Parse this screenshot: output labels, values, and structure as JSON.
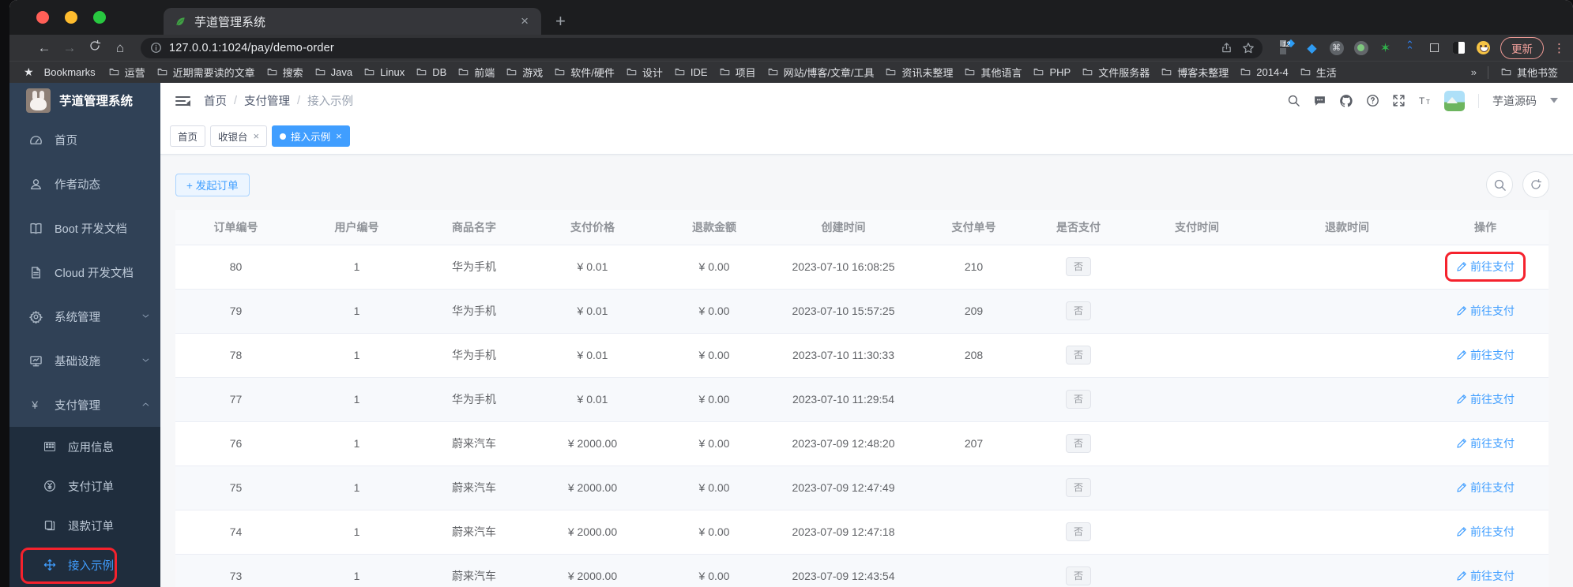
{
  "colors": {
    "accent": "#409EFF",
    "sidebar": "#304156",
    "submenu": "#1F2D3D",
    "annotation_red": "#F5222D",
    "light_red": "#FF5F57",
    "light_yellow": "#FEBC2E",
    "light_green": "#28C840"
  },
  "browser": {
    "tab_title": "芋道管理系统",
    "tab_favicon": "leaf-icon",
    "new_tab_label": "+",
    "close_label": "×",
    "url": "127.0.0.1:1024/pay/demo-order",
    "update_label": "更新",
    "extension_badge": "12",
    "kebab_label": "⋮",
    "bookmarks_label": "Bookmarks",
    "more_label": "»",
    "other_bookmarks_label": "其他书签",
    "bookmarks": [
      "运营",
      "近期需要读的文章",
      "搜索",
      "Java",
      "Linux",
      "DB",
      "前端",
      "游戏",
      "软件/硬件",
      "设计",
      "IDE",
      "项目",
      "网站/博客/文章/工具",
      "资讯未整理",
      "其他语言",
      "PHP",
      "文件服务器",
      "博客未整理",
      "2014-4",
      "生活"
    ],
    "extensions": [
      "squares-extension-icon",
      "kite-extension-icon",
      "command-extension-icon",
      "recorder-extension-icon",
      "star-extension-icon",
      "layers-extension-icon",
      "puzzle-extension-icon",
      "dark-reader-extension-icon",
      "emoji-extension-icon"
    ]
  },
  "app": {
    "sidebar": {
      "title": "芋道管理系统",
      "items": [
        {
          "icon": "dashboard-icon",
          "label": "首页"
        },
        {
          "icon": "user-icon",
          "label": "作者动态"
        },
        {
          "icon": "book-icon",
          "label": "Boot 开发文档"
        },
        {
          "icon": "document-icon",
          "label": "Cloud 开发文档"
        },
        {
          "icon": "gear-icon",
          "label": "系统管理",
          "expand": "down"
        },
        {
          "icon": "monitor-icon",
          "label": "基础设施",
          "expand": "down"
        },
        {
          "icon": "yen-icon",
          "label": "支付管理",
          "expand": "up"
        }
      ],
      "submenu": [
        {
          "icon": "grid-icon",
          "label": "应用信息"
        },
        {
          "icon": "yen-circle-icon",
          "label": "支付订单"
        },
        {
          "icon": "copy-icon",
          "label": "退款订单"
        },
        {
          "icon": "move-icon",
          "label": "接入示例",
          "active": true,
          "annotated": true
        }
      ]
    },
    "breadcrumb": [
      "首页",
      "支付管理",
      "接入示例"
    ],
    "header_icons": [
      "search-icon",
      "chat-icon",
      "github-icon",
      "question-icon",
      "fullscreen-icon",
      "font-size-icon"
    ],
    "user_name": "芋道源码",
    "tags": [
      {
        "label": "首页",
        "closable": false,
        "active": false
      },
      {
        "label": "收银台",
        "closable": true,
        "active": false
      },
      {
        "label": "接入示例",
        "closable": true,
        "active": true
      }
    ],
    "toolbar": {
      "create_label": "+ 发起订单",
      "tools": [
        "search-icon",
        "refresh-icon"
      ]
    },
    "table": {
      "headers": [
        "订单编号",
        "用户编号",
        "商品名字",
        "支付价格",
        "退款金额",
        "创建时间",
        "支付单号",
        "是否支付",
        "支付时间",
        "退款时间",
        "操作"
      ],
      "paid_no_label": "否",
      "action_label": "前往支付",
      "rows": [
        {
          "id": "80",
          "user": "1",
          "product": "华为手机",
          "price": "¥ 0.01",
          "refund": "¥ 0.00",
          "created": "2023-07-10 16:08:25",
          "pay_no": "210",
          "paid": "否",
          "pay_time": "",
          "refund_time": "",
          "action": "前往支付",
          "annotated": true
        },
        {
          "id": "79",
          "user": "1",
          "product": "华为手机",
          "price": "¥ 0.01",
          "refund": "¥ 0.00",
          "created": "2023-07-10 15:57:25",
          "pay_no": "209",
          "paid": "否",
          "pay_time": "",
          "refund_time": "",
          "action": "前往支付"
        },
        {
          "id": "78",
          "user": "1",
          "product": "华为手机",
          "price": "¥ 0.01",
          "refund": "¥ 0.00",
          "created": "2023-07-10 11:30:33",
          "pay_no": "208",
          "paid": "否",
          "pay_time": "",
          "refund_time": "",
          "action": "前往支付"
        },
        {
          "id": "77",
          "user": "1",
          "product": "华为手机",
          "price": "¥ 0.01",
          "refund": "¥ 0.00",
          "created": "2023-07-10 11:29:54",
          "pay_no": "",
          "paid": "否",
          "pay_time": "",
          "refund_time": "",
          "action": "前往支付"
        },
        {
          "id": "76",
          "user": "1",
          "product": "蔚来汽车",
          "price": "¥ 2000.00",
          "refund": "¥ 0.00",
          "created": "2023-07-09 12:48:20",
          "pay_no": "207",
          "paid": "否",
          "pay_time": "",
          "refund_time": "",
          "action": "前往支付"
        },
        {
          "id": "75",
          "user": "1",
          "product": "蔚来汽车",
          "price": "¥ 2000.00",
          "refund": "¥ 0.00",
          "created": "2023-07-09 12:47:49",
          "pay_no": "",
          "paid": "否",
          "pay_time": "",
          "refund_time": "",
          "action": "前往支付"
        },
        {
          "id": "74",
          "user": "1",
          "product": "蔚来汽车",
          "price": "¥ 2000.00",
          "refund": "¥ 0.00",
          "created": "2023-07-09 12:47:18",
          "pay_no": "",
          "paid": "否",
          "pay_time": "",
          "refund_time": "",
          "action": "前往支付"
        },
        {
          "id": "73",
          "user": "1",
          "product": "蔚来汽车",
          "price": "¥ 2000.00",
          "refund": "¥ 0.00",
          "created": "2023-07-09 12:43:54",
          "pay_no": "",
          "paid": "否",
          "pay_time": "",
          "refund_time": "",
          "action": "前往支付"
        }
      ]
    }
  }
}
